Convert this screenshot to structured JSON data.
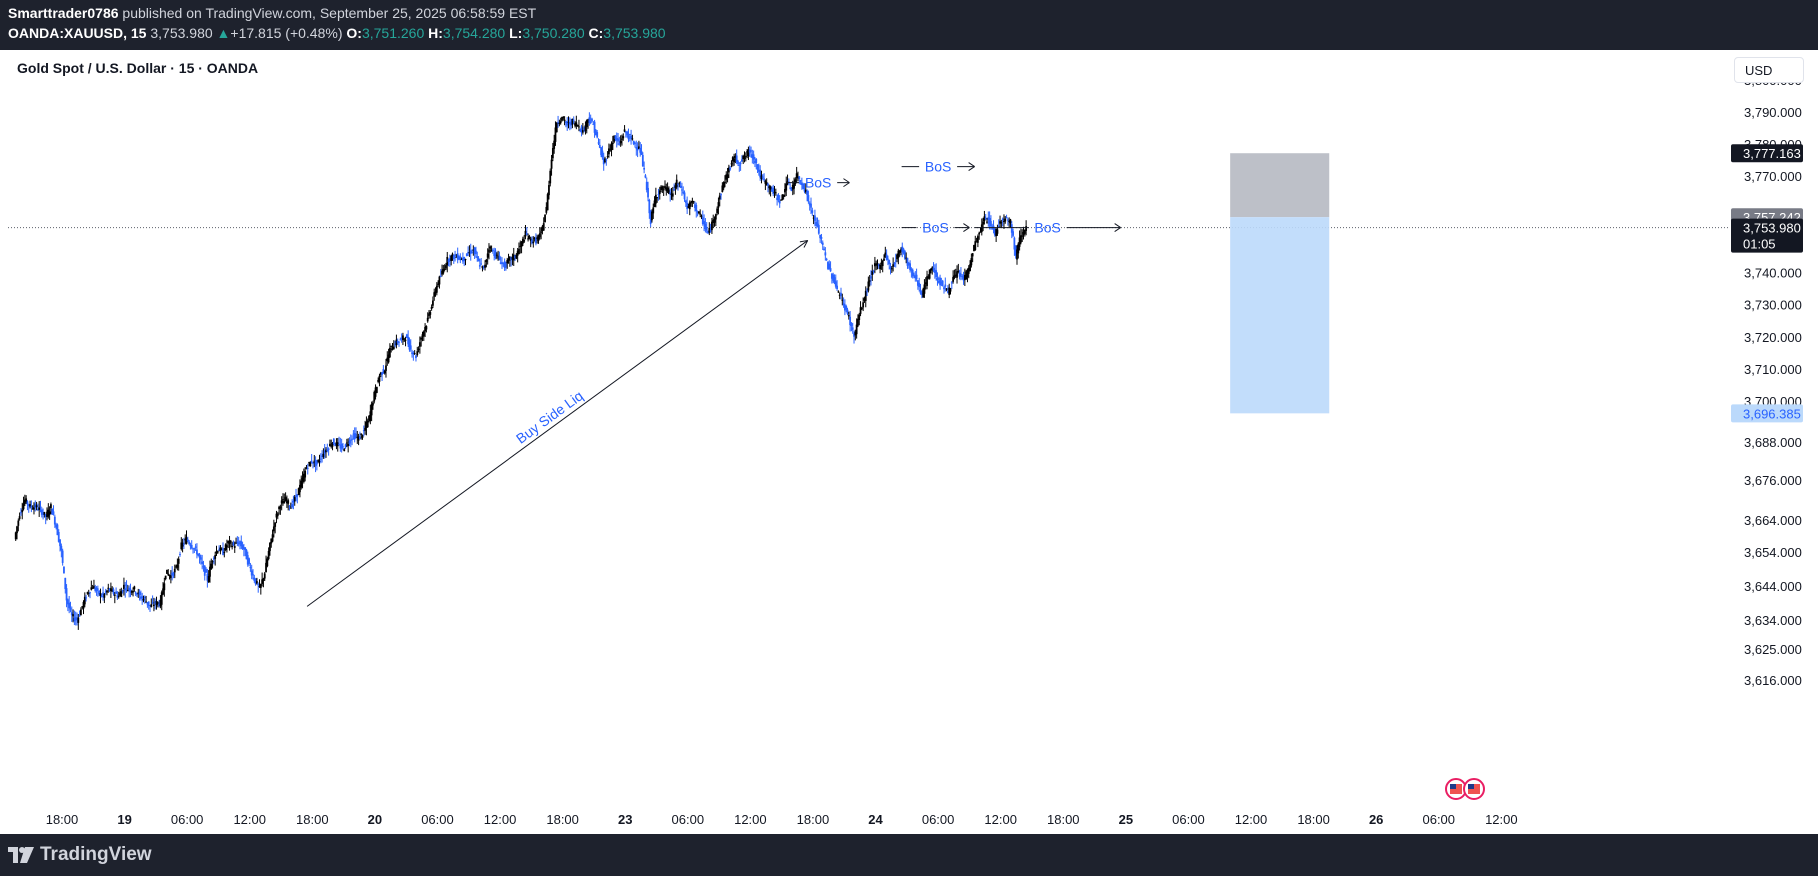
{
  "header": {
    "author": "Smarttrader0786",
    "published_text": "published on TradingView.com, September 25, 2025 06:58:59 EST",
    "symbol": "OANDA:XAUUSD, 15",
    "last": "3,753.980",
    "change": "+17.815 (+0.48%)",
    "open_label": "O:",
    "open": "3,751.260",
    "high_label": "H:",
    "high": "3,754.280",
    "low_label": "L:",
    "low": "3,750.280",
    "close_label": "C:",
    "close": "3,753.980"
  },
  "chart_title": "Gold Spot / U.S. Dollar · 15 · OANDA",
  "currency": "USD",
  "footer": {
    "brand": "TradingView"
  },
  "colors": {
    "up": "#000000",
    "down": "#2962ff",
    "annotation": "#2962ff",
    "stop_zone": "#b2b5be",
    "target_zone": "#bbd9fb",
    "positive": "#26a69a"
  },
  "chart_data": {
    "type": "candlestick",
    "instrument": "XAUUSD",
    "timeframe": "15",
    "y_ticks": [
      3800.0,
      3790.0,
      3780.0,
      3770.0,
      3760.0,
      3750.0,
      3740.0,
      3730.0,
      3720.0,
      3710.0,
      3700.0,
      3688.0,
      3676.0,
      3664.0,
      3654.0,
      3644.0,
      3634.0,
      3625.0,
      3616.0
    ],
    "y_tick_labels": [
      "3,800.000",
      "3,790.000",
      "3,780.000",
      "3,770.000",
      "",
      "",
      "3,740.000",
      "3,730.000",
      "3,720.000",
      "3,710.000",
      "3,700.000",
      "3,688.000",
      "3,676.000",
      "3,664.000",
      "3,654.000",
      "3,644.000",
      "3,634.000",
      "3,625.000",
      "3,616.000"
    ],
    "x_ticks": [
      {
        "t": 0.0,
        "label": "18:00"
      },
      {
        "t": 6.0,
        "label": "19"
      },
      {
        "t": 12.0,
        "label": "06:00"
      },
      {
        "t": 18.0,
        "label": "12:00"
      },
      {
        "t": 24.0,
        "label": "18:00"
      },
      {
        "t": 30.0,
        "label": "20"
      },
      {
        "t": 36.0,
        "label": "06:00"
      },
      {
        "t": 42.0,
        "label": "12:00"
      },
      {
        "t": 48.0,
        "label": "18:00"
      },
      {
        "t": 54.0,
        "label": "23"
      },
      {
        "t": 60.0,
        "label": "06:00"
      },
      {
        "t": 66.0,
        "label": "12:00"
      },
      {
        "t": 72.0,
        "label": "18:00"
      },
      {
        "t": 78.0,
        "label": "24"
      },
      {
        "t": 84.0,
        "label": "06:00"
      },
      {
        "t": 90.0,
        "label": "12:00"
      },
      {
        "t": 96.0,
        "label": "18:00"
      },
      {
        "t": 102.0,
        "label": "25"
      },
      {
        "t": 108.0,
        "label": "06:00"
      },
      {
        "t": 114.0,
        "label": "12:00"
      },
      {
        "t": 120.0,
        "label": "18:00"
      },
      {
        "t": 126.0,
        "label": "26"
      },
      {
        "t": 132.0,
        "label": "06:00"
      },
      {
        "t": 138.0,
        "label": "12:00"
      }
    ],
    "price_series_hours": [
      [
        -4.5,
        3658
      ],
      [
        -4,
        3666
      ],
      [
        -3.5,
        3670
      ],
      [
        -3,
        3668
      ],
      [
        -2.5,
        3668
      ],
      [
        -2,
        3667
      ],
      [
        -1.5,
        3665
      ],
      [
        -1,
        3668
      ],
      [
        -0.5,
        3662
      ],
      [
        0,
        3654
      ],
      [
        0.5,
        3640
      ],
      [
        1,
        3635
      ],
      [
        1.5,
        3634
      ],
      [
        2,
        3638
      ],
      [
        2.5,
        3642
      ],
      [
        3,
        3644
      ],
      [
        3.5,
        3642
      ],
      [
        4,
        3641
      ],
      [
        4.5,
        3643
      ],
      [
        5,
        3642
      ],
      [
        5.5,
        3641
      ],
      [
        6,
        3644
      ],
      [
        6.5,
        3643
      ],
      [
        7,
        3643
      ],
      [
        7.5,
        3641
      ],
      [
        8,
        3640
      ],
      [
        8.5,
        3638
      ],
      [
        9,
        3639
      ],
      [
        9.5,
        3639
      ],
      [
        10,
        3648
      ],
      [
        10.5,
        3647
      ],
      [
        11,
        3649
      ],
      [
        11.5,
        3656
      ],
      [
        12,
        3658
      ],
      [
        12.5,
        3656
      ],
      [
        13,
        3654
      ],
      [
        13.5,
        3650
      ],
      [
        14,
        3646
      ],
      [
        14.5,
        3652
      ],
      [
        15,
        3655
      ],
      [
        15.5,
        3654
      ],
      [
        16,
        3657
      ],
      [
        16.5,
        3656
      ],
      [
        17,
        3657
      ],
      [
        17.5,
        3655
      ],
      [
        18,
        3650
      ],
      [
        18.5,
        3646
      ],
      [
        19,
        3643
      ],
      [
        19.5,
        3648
      ],
      [
        20,
        3656
      ],
      [
        20.5,
        3664
      ],
      [
        21,
        3669
      ],
      [
        21.5,
        3670
      ],
      [
        22,
        3668
      ],
      [
        22.5,
        3671
      ],
      [
        23,
        3675
      ],
      [
        23.5,
        3680
      ],
      [
        24,
        3682
      ],
      [
        24.5,
        3681
      ],
      [
        25,
        3684
      ],
      [
        25.5,
        3686
      ],
      [
        26,
        3688
      ],
      [
        26.5,
        3687
      ],
      [
        27,
        3686
      ],
      [
        27.5,
        3688
      ],
      [
        28,
        3690
      ],
      [
        28.5,
        3689
      ],
      [
        29,
        3691
      ],
      [
        29.5,
        3695
      ],
      [
        30,
        3702
      ],
      [
        30.5,
        3708
      ],
      [
        31,
        3710
      ],
      [
        31.5,
        3716
      ],
      [
        32,
        3718
      ],
      [
        32.5,
        3719
      ],
      [
        33,
        3720
      ],
      [
        33.5,
        3716
      ],
      [
        34,
        3714
      ],
      [
        34.5,
        3720
      ],
      [
        35,
        3724
      ],
      [
        35.5,
        3730
      ],
      [
        36,
        3736
      ],
      [
        36.5,
        3740
      ],
      [
        37,
        3744
      ],
      [
        37.5,
        3745
      ],
      [
        38,
        3745
      ],
      [
        38.5,
        3744
      ],
      [
        39,
        3746
      ],
      [
        39.5,
        3747
      ],
      [
        40,
        3743
      ],
      [
        40.5,
        3741
      ],
      [
        41,
        3748
      ],
      [
        41.5,
        3746
      ],
      [
        42,
        3744
      ],
      [
        42.5,
        3742
      ],
      [
        43,
        3744
      ],
      [
        43.5,
        3745
      ],
      [
        44,
        3748
      ],
      [
        44.5,
        3752
      ],
      [
        45,
        3750
      ],
      [
        45.5,
        3750
      ],
      [
        46,
        3752
      ],
      [
        46.5,
        3760
      ],
      [
        47,
        3776
      ],
      [
        47.5,
        3787
      ],
      [
        48,
        3788
      ],
      [
        48.5,
        3786
      ],
      [
        49,
        3787
      ],
      [
        49.5,
        3786
      ],
      [
        50,
        3784
      ],
      [
        50.5,
        3788
      ],
      [
        51,
        3786
      ],
      [
        51.5,
        3780
      ],
      [
        52,
        3774
      ],
      [
        52.5,
        3778
      ],
      [
        53,
        3782
      ],
      [
        53.5,
        3780
      ],
      [
        54,
        3784
      ],
      [
        54.5,
        3782
      ],
      [
        55,
        3780
      ],
      [
        55.5,
        3778
      ],
      [
        56,
        3769
      ],
      [
        56.5,
        3756
      ],
      [
        57,
        3764
      ],
      [
        57.5,
        3766
      ],
      [
        58,
        3766
      ],
      [
        58.5,
        3764
      ],
      [
        59,
        3768
      ],
      [
        59.5,
        3766
      ],
      [
        60,
        3760
      ],
      [
        60.5,
        3762
      ],
      [
        61,
        3759
      ],
      [
        61.5,
        3756
      ],
      [
        62,
        3752
      ],
      [
        62.5,
        3756
      ],
      [
        63,
        3762
      ],
      [
        63.5,
        3768
      ],
      [
        64,
        3772
      ],
      [
        64.5,
        3776
      ],
      [
        65,
        3774
      ],
      [
        65.5,
        3776
      ],
      [
        66,
        3778
      ],
      [
        66.5,
        3775
      ],
      [
        67,
        3770
      ],
      [
        67.5,
        3768
      ],
      [
        68,
        3766
      ],
      [
        68.5,
        3764
      ],
      [
        69,
        3762
      ],
      [
        69.5,
        3768
      ],
      [
        70,
        3766
      ],
      [
        70.5,
        3770
      ],
      [
        71,
        3768
      ],
      [
        71.5,
        3764
      ],
      [
        72,
        3758
      ],
      [
        72.5,
        3754
      ],
      [
        73,
        3748
      ],
      [
        73.5,
        3742
      ],
      [
        74,
        3738
      ],
      [
        74.5,
        3734
      ],
      [
        75,
        3730
      ],
      [
        75.5,
        3726
      ],
      [
        76,
        3720
      ],
      [
        76.5,
        3727
      ],
      [
        77,
        3732
      ],
      [
        77.5,
        3738
      ],
      [
        78,
        3742
      ],
      [
        78.5,
        3742
      ],
      [
        79,
        3746
      ],
      [
        79.5,
        3741
      ],
      [
        80,
        3744
      ],
      [
        80.5,
        3748
      ],
      [
        81,
        3744
      ],
      [
        81.5,
        3740
      ],
      [
        82,
        3738
      ],
      [
        82.5,
        3733
      ],
      [
        83,
        3738
      ],
      [
        83.5,
        3742
      ],
      [
        84,
        3738
      ],
      [
        84.5,
        3736
      ],
      [
        85,
        3734
      ],
      [
        85.5,
        3738
      ],
      [
        86,
        3740
      ],
      [
        86.5,
        3738
      ],
      [
        87,
        3741
      ],
      [
        87.5,
        3748
      ],
      [
        88,
        3752
      ],
      [
        88.5,
        3757
      ],
      [
        89,
        3756
      ],
      [
        89.5,
        3752
      ],
      [
        90,
        3756
      ],
      [
        90.5,
        3757
      ],
      [
        91,
        3756
      ],
      [
        91.5,
        3745
      ],
      [
        92,
        3752
      ],
      [
        92.5,
        3754
      ]
    ],
    "annotations": [
      {
        "type": "trendline",
        "label": "Buy Side Liq",
        "from": [
          23.5,
          3638
        ],
        "to": [
          71.5,
          3750
        ]
      },
      {
        "type": "bos",
        "label": "BoS",
        "y": 3768,
        "x1": 69.5,
        "x2": 75.5
      },
      {
        "type": "bos",
        "label": "BoS",
        "y": 3773,
        "x1": 80.5,
        "x2": 87.5
      },
      {
        "type": "bos",
        "label": "BoS",
        "y": 3754,
        "x1": 80.5,
        "x2": 87.0
      },
      {
        "type": "bos",
        "label": "BoS",
        "y": 3754,
        "x1": 87.5,
        "x2": 101.5
      }
    ],
    "position": {
      "side": "short",
      "entry": 3757.242,
      "stop": 3777.163,
      "target": 3696.385,
      "start": 112.0,
      "end": 121.5
    },
    "price_labels": [
      {
        "price": 3777.163,
        "text": "3,777.163",
        "style": "dark"
      },
      {
        "price": 3757.242,
        "text": "3,757.242",
        "style": "gray"
      },
      {
        "price": 3753.98,
        "text": "3,753.980",
        "style": "dark",
        "sub": "01:05"
      },
      {
        "price": 3696.385,
        "text": "3,696.385",
        "style": "blue"
      }
    ],
    "current_price": 3753.98
  }
}
